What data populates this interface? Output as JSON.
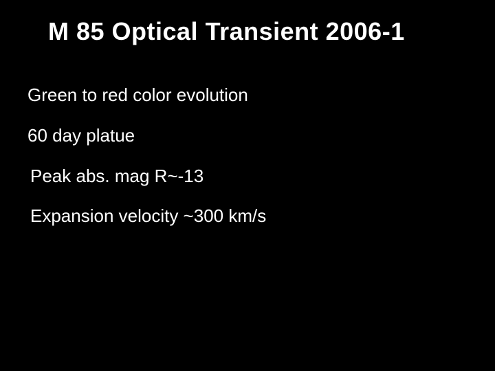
{
  "slide": {
    "title": "M 85 Optical Transient 2006-1",
    "bullets": [
      "Green to red color evolution",
      "60 day platue",
      "Peak abs. mag  R~-13",
      "Expansion velocity ~300 km/s"
    ],
    "colors": {
      "background": "#000000",
      "text": "#ffffff"
    },
    "typography": {
      "title_fontsize": 36,
      "bullet_fontsize": 26,
      "font_family": "Comic Sans MS"
    }
  }
}
